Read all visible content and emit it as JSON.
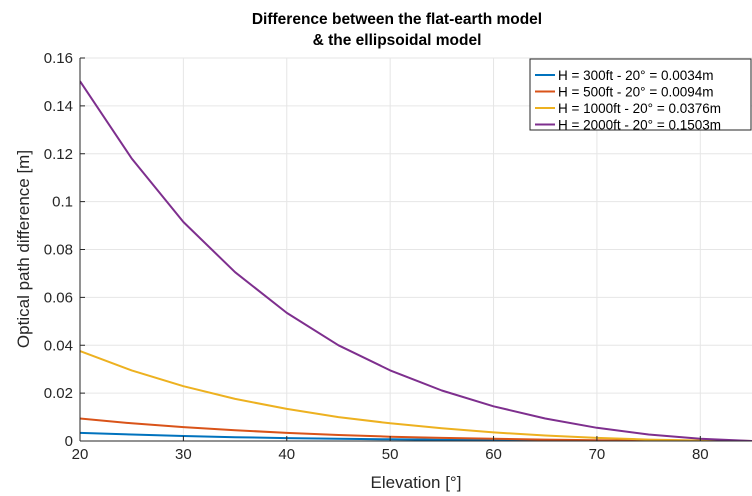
{
  "chart_data": {
    "type": "line",
    "title": [
      "Difference between the flat-earth model",
      "& the ellipsoidal model"
    ],
    "xlabel": "Elevation [°]",
    "ylabel": "Optical path difference [m]",
    "xlim": [
      20,
      85
    ],
    "ylim": [
      0,
      0.16
    ],
    "xticks": [
      20,
      30,
      40,
      50,
      60,
      70,
      80
    ],
    "yticks": [
      0,
      0.02,
      0.04,
      0.06,
      0.08,
      0.1,
      0.12,
      0.14,
      0.16
    ],
    "ytick_labels": [
      "0",
      "0.02",
      "0.04",
      "0.06",
      "0.08",
      "0.1",
      "0.12",
      "0.14",
      "0.16"
    ],
    "grid": true,
    "legend_position": "top-right",
    "x": [
      20,
      25,
      30,
      35,
      40,
      45,
      50,
      55,
      60,
      65,
      70,
      75,
      80,
      85
    ],
    "series": [
      {
        "name": "H = 300ft - 20° = 0.0034m",
        "color": "#0072BD",
        "values": [
          0.0034,
          0.0027,
          0.0021,
          0.0016,
          0.0012,
          0.0009,
          0.0007,
          0.0005,
          0.0003,
          0.0002,
          0.0001,
          5e-05,
          2e-05,
          0.0
        ]
      },
      {
        "name": "H = 500ft - 20° = 0.0094m",
        "color": "#D95319",
        "values": [
          0.0094,
          0.0074,
          0.0058,
          0.0045,
          0.0034,
          0.0025,
          0.0018,
          0.0013,
          0.0009,
          0.0006,
          0.0003,
          0.0002,
          0.0001,
          0.0
        ]
      },
      {
        "name": "H = 1000ft - 20° = 0.0376m",
        "color": "#EDB120",
        "values": [
          0.0376,
          0.0295,
          0.0229,
          0.0176,
          0.0134,
          0.01,
          0.0074,
          0.0053,
          0.0036,
          0.0023,
          0.0013,
          0.0006,
          0.0002,
          0.0
        ]
      },
      {
        "name": "H = 2000ft - 20° = 0.1503m",
        "color": "#7E2F8E",
        "values": [
          0.1503,
          0.118,
          0.0915,
          0.0705,
          0.0535,
          0.04,
          0.0295,
          0.0211,
          0.0145,
          0.0094,
          0.0055,
          0.0027,
          0.0009,
          0.0
        ]
      }
    ]
  }
}
